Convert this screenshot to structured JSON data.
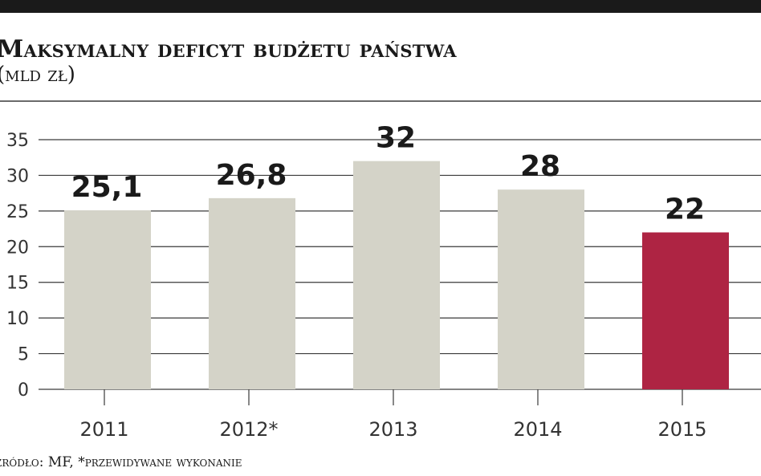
{
  "header": {
    "title": "Maksymalny deficyt budżetu państwa",
    "subtitle": "(mld zł)"
  },
  "footer": {
    "source": "źródło: MF, *przewidywane wykonanie"
  },
  "colors": {
    "bar_default": "#d4d3c8",
    "bar_highlight": "#ae2443",
    "grid": "#3a3a3a"
  },
  "chart_data": {
    "type": "bar",
    "title": "Maksymalny deficyt budżetu państwa",
    "subtitle": "(mld zł)",
    "categories": [
      "2011",
      "2012*",
      "2013",
      "2014",
      "2015"
    ],
    "values": [
      25.1,
      26.8,
      32,
      28,
      22
    ],
    "value_labels": [
      "25,1",
      "26,8",
      "32",
      "28",
      "22"
    ],
    "highlight_index": 4,
    "ylim": [
      0,
      35
    ],
    "yticks": [
      0,
      5,
      10,
      15,
      20,
      25,
      30,
      35
    ],
    "grid": true,
    "legend": "none",
    "xlabel": "",
    "ylabel": ""
  }
}
